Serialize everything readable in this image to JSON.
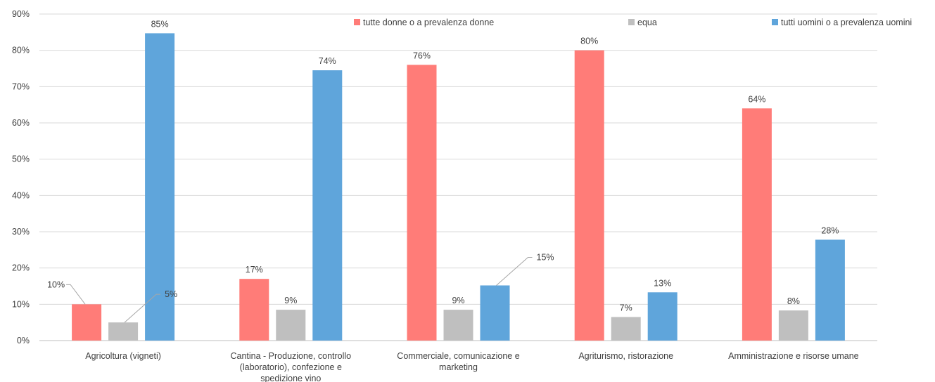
{
  "chart_data": {
    "type": "bar",
    "categories": [
      [
        "Agricoltura (vigneti)"
      ],
      [
        "Cantina - Produzione, controllo",
        "(laboratorio), confezione e",
        "spedizione vino"
      ],
      [
        "Commerciale, comunicazione e",
        "marketing"
      ],
      [
        "Agriturismo, ristorazione"
      ],
      [
        "Amministrazione e risorse umane"
      ]
    ],
    "series": [
      {
        "name": "tutte donne o a prevalenza donne",
        "color": "#ff7c78",
        "values": [
          10,
          17,
          76,
          80,
          64
        ],
        "labels": [
          "10%",
          "17%",
          "76%",
          "80%",
          "64%"
        ]
      },
      {
        "name": "equa",
        "color": "#bfbfbf",
        "values": [
          5,
          8.5,
          8.5,
          6.5,
          8.3
        ],
        "labels": [
          "5%",
          "9%",
          "9%",
          "7%",
          "8%"
        ]
      },
      {
        "name": "tutti uomini o a prevalenza uomini",
        "color": "#5fa5db",
        "values": [
          84.7,
          74.5,
          15.2,
          13.3,
          27.8
        ],
        "labels": [
          "85%",
          "74%",
          "15%",
          "13%",
          "28%"
        ]
      }
    ],
    "ylim": [
      0,
      90
    ],
    "yticks": [
      "0%",
      "10%",
      "20%",
      "30%",
      "40%",
      "50%",
      "60%",
      "70%",
      "80%",
      "90%"
    ],
    "grid": true,
    "legend_position": "top"
  }
}
